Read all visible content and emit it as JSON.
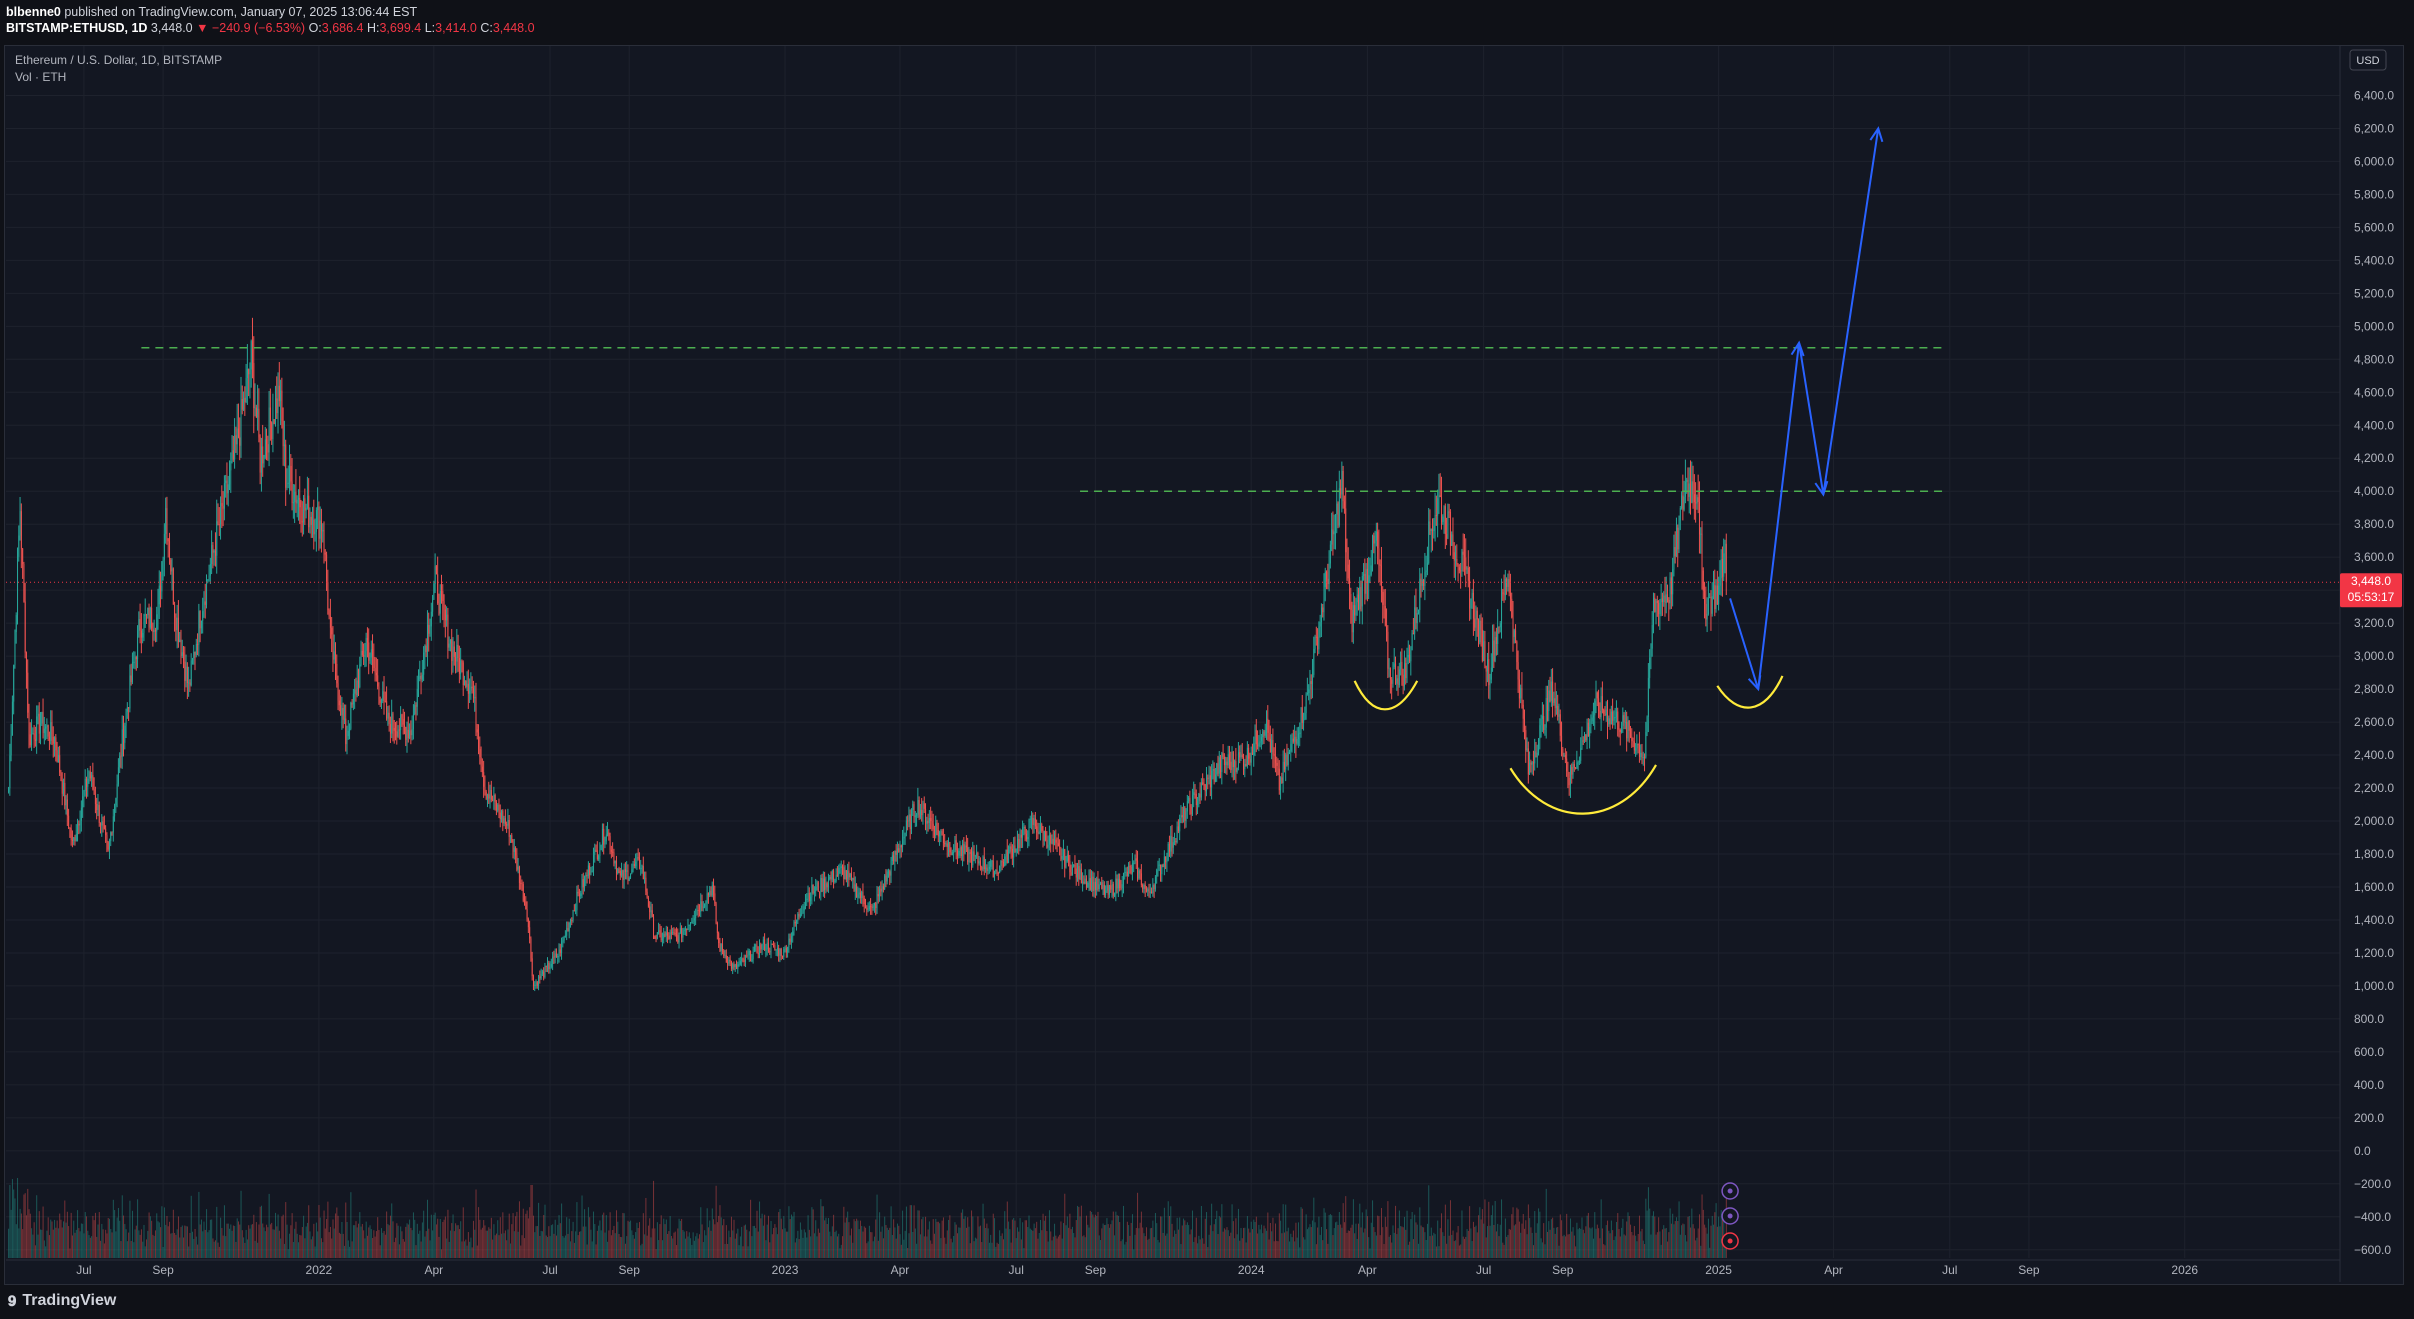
{
  "header": {
    "publisher_user": "blbenne0",
    "publisher_rest": " published on TradingView.com, January 07, 2025 13:06:44 EST",
    "symbol": "BITSTAMP:ETHUSD, 1D",
    "last": "3,448.0",
    "change": "▼ −240.9 (−6.53%)",
    "open_label": "O:",
    "open": "3,686.4",
    "high_label": "H:",
    "high": "3,699.4",
    "low_label": "L:",
    "low": "3,414.0",
    "close_label": "C:",
    "close": "3,448.0"
  },
  "legend": {
    "series_title": "Ethereum / U.S. Dollar, 1D, BITSTAMP",
    "volume_title": "Vol · ETH"
  },
  "footer": {
    "brand": "TradingView",
    "brand_icon": "tradingview-logo-icon"
  },
  "colors": {
    "up": "#26a69a",
    "down": "#ef5350",
    "last_price": "#f23645",
    "dashed": "#4caf50",
    "arrow": "#2962ff",
    "curve": "#ffeb3b"
  },
  "chart_data": {
    "type": "candlestick",
    "title": "Ethereum / U.S. Dollar, 1D, BITSTAMP",
    "currency": "USD",
    "last_price_label": "3,448.0",
    "countdown_label": "05:53:17",
    "ylim": [
      -650,
      6700
    ],
    "y_ticks": [
      6400,
      6200,
      6000,
      5800,
      5600,
      5400,
      5200,
      5000,
      4800,
      4600,
      4400,
      4200,
      4000,
      3800,
      3600,
      3400,
      3200,
      3000,
      2800,
      2600,
      2400,
      2200,
      2000,
      1800,
      1600,
      1400,
      1200,
      1000,
      800,
      600,
      400,
      200,
      0,
      -200,
      -400,
      -600
    ],
    "y_tick_labels": [
      "6,400.0",
      "6,200.0",
      "6,000.0",
      "5,800.0",
      "5,600.0",
      "5,400.0",
      "5,200.0",
      "5,000.0",
      "4,800.0",
      "4,600.0",
      "4,400.0",
      "4,200.0",
      "4,000.0",
      "3,800.0",
      "3,600.0",
      "3,400.0",
      "3,200.0",
      "3,000.0",
      "2,800.0",
      "2,600.0",
      "2,400.0",
      "2,200.0",
      "2,000.0",
      "1,800.0",
      "1,600.0",
      "1,400.0",
      "1,200.0",
      "1,000.0",
      "800.0",
      "600.0",
      "400.0",
      "200.0",
      "0.0",
      "−200.0",
      "−400.0",
      "−600.0"
    ],
    "xlim": [
      "2021-05-01",
      "2026-05-01"
    ],
    "x_ticks": [
      {
        "date": "2021-07-01",
        "label": "Jul"
      },
      {
        "date": "2021-09-01",
        "label": "Sep"
      },
      {
        "date": "2022-01-01",
        "label": "2022"
      },
      {
        "date": "2022-04-01",
        "label": "Apr"
      },
      {
        "date": "2022-07-01",
        "label": "Jul"
      },
      {
        "date": "2022-09-01",
        "label": "Sep"
      },
      {
        "date": "2023-01-01",
        "label": "2023"
      },
      {
        "date": "2023-04-01",
        "label": "Apr"
      },
      {
        "date": "2023-07-01",
        "label": "Jul"
      },
      {
        "date": "2023-09-01",
        "label": "Sep"
      },
      {
        "date": "2024-01-01",
        "label": "2024"
      },
      {
        "date": "2024-04-01",
        "label": "Apr"
      },
      {
        "date": "2024-07-01",
        "label": "Jul"
      },
      {
        "date": "2024-09-01",
        "label": "Sep"
      },
      {
        "date": "2025-01-01",
        "label": "2025"
      },
      {
        "date": "2025-04-01",
        "label": "Apr"
      },
      {
        "date": "2025-07-01",
        "label": "Jul"
      },
      {
        "date": "2025-09-01",
        "label": "Sep"
      },
      {
        "date": "2026-01-01",
        "label": "2026"
      }
    ],
    "series": [
      {
        "name": "ETHUSD",
        "kind": "price",
        "points": [
          [
            "2021-05-03",
            2200
          ],
          [
            "2021-05-12",
            3900
          ],
          [
            "2021-05-19",
            2500
          ],
          [
            "2021-05-28",
            2600
          ],
          [
            "2021-06-08",
            2500
          ],
          [
            "2021-06-22",
            1850
          ],
          [
            "2021-07-05",
            2300
          ],
          [
            "2021-07-20",
            1800
          ],
          [
            "2021-08-01",
            2550
          ],
          [
            "2021-08-14",
            3200
          ],
          [
            "2021-08-28",
            3250
          ],
          [
            "2021-09-03",
            3900
          ],
          [
            "2021-09-10",
            3300
          ],
          [
            "2021-09-21",
            2800
          ],
          [
            "2021-10-01",
            3300
          ],
          [
            "2021-10-15",
            3800
          ],
          [
            "2021-10-28",
            4250
          ],
          [
            "2021-11-09",
            4800
          ],
          [
            "2021-11-16",
            4200
          ],
          [
            "2021-12-01",
            4600
          ],
          [
            "2021-12-06",
            4100
          ],
          [
            "2021-12-20",
            3900
          ],
          [
            "2022-01-04",
            3800
          ],
          [
            "2022-01-10",
            3100
          ],
          [
            "2022-01-22",
            2500
          ],
          [
            "2022-02-07",
            3100
          ],
          [
            "2022-02-24",
            2600
          ],
          [
            "2022-03-14",
            2550
          ],
          [
            "2022-04-02",
            3450
          ],
          [
            "2022-04-15",
            3050
          ],
          [
            "2022-05-01",
            2800
          ],
          [
            "2022-05-11",
            2200
          ],
          [
            "2022-05-30",
            1950
          ],
          [
            "2022-06-13",
            1450
          ],
          [
            "2022-06-18",
            1000
          ],
          [
            "2022-07-08",
            1200
          ],
          [
            "2022-07-23",
            1550
          ],
          [
            "2022-08-14",
            1950
          ],
          [
            "2022-08-25",
            1650
          ],
          [
            "2022-09-10",
            1750
          ],
          [
            "2022-09-21",
            1300
          ],
          [
            "2022-10-10",
            1300
          ],
          [
            "2022-11-05",
            1600
          ],
          [
            "2022-11-10",
            1250
          ],
          [
            "2022-11-22",
            1100
          ],
          [
            "2022-12-15",
            1250
          ],
          [
            "2022-12-31",
            1200
          ],
          [
            "2023-01-18",
            1550
          ],
          [
            "2023-02-15",
            1700
          ],
          [
            "2023-03-10",
            1450
          ],
          [
            "2023-04-14",
            2100
          ],
          [
            "2023-05-10",
            1850
          ],
          [
            "2023-06-15",
            1700
          ],
          [
            "2023-07-14",
            1990
          ],
          [
            "2023-08-18",
            1680
          ],
          [
            "2023-09-11",
            1560
          ],
          [
            "2023-10-02",
            1730
          ],
          [
            "2023-10-12",
            1550
          ],
          [
            "2023-11-10",
            2050
          ],
          [
            "2023-12-09",
            2350
          ],
          [
            "2023-12-28",
            2380
          ],
          [
            "2024-01-12",
            2600
          ],
          [
            "2024-01-23",
            2220
          ],
          [
            "2024-02-14",
            2750
          ],
          [
            "2024-03-12",
            4050
          ],
          [
            "2024-03-19",
            3200
          ],
          [
            "2024-04-08",
            3700
          ],
          [
            "2024-04-18",
            2900
          ],
          [
            "2024-05-01",
            2900
          ],
          [
            "2024-05-21",
            3800
          ],
          [
            "2024-05-27",
            3950
          ],
          [
            "2024-06-18",
            3450
          ],
          [
            "2024-07-05",
            2900
          ],
          [
            "2024-07-20",
            3500
          ],
          [
            "2024-08-05",
            2300
          ],
          [
            "2024-08-24",
            2800
          ],
          [
            "2024-09-06",
            2250
          ],
          [
            "2024-09-27",
            2700
          ],
          [
            "2024-10-16",
            2600
          ],
          [
            "2024-11-04",
            2400
          ],
          [
            "2024-11-11",
            3300
          ],
          [
            "2024-11-24",
            3400
          ],
          [
            "2024-12-06",
            4050
          ],
          [
            "2024-12-16",
            4000
          ],
          [
            "2024-12-20",
            3300
          ],
          [
            "2025-01-01",
            3400
          ],
          [
            "2025-01-06",
            3650
          ],
          [
            "2025-01-07",
            3448
          ]
        ]
      }
    ],
    "volume": {
      "name": "Vol · ETH"
    },
    "annotations": {
      "horizontal_lines": [
        {
          "style": "dashed",
          "y": 4870,
          "from": "2021-08-15",
          "to": "2025-06-25"
        },
        {
          "style": "dashed",
          "y": 4000,
          "from": "2023-08-20",
          "to": "2025-06-25"
        }
      ],
      "projection_path": [
        [
          "2025-01-10",
          3350
        ],
        [
          "2025-02-01",
          2800
        ],
        [
          "2025-03-05",
          4900
        ],
        [
          "2025-03-24",
          3980
        ],
        [
          "2025-05-06",
          6200
        ]
      ],
      "curves": [
        {
          "points": [
            [
              "2024-03-22",
              2850
            ],
            [
              "2024-04-05",
              2620
            ],
            [
              "2024-04-24",
              2620
            ],
            [
              "2024-05-10",
              2850
            ]
          ]
        },
        {
          "points": [
            [
              "2024-07-22",
              2320
            ],
            [
              "2024-08-20",
              1950
            ],
            [
              "2024-10-15",
              1950
            ],
            [
              "2024-11-13",
              2340
            ]
          ]
        },
        {
          "points": [
            [
              "2024-12-31",
              2820
            ],
            [
              "2025-01-16",
              2630
            ],
            [
              "2025-02-06",
              2640
            ],
            [
              "2025-02-20",
              2880
            ]
          ]
        }
      ]
    }
  }
}
